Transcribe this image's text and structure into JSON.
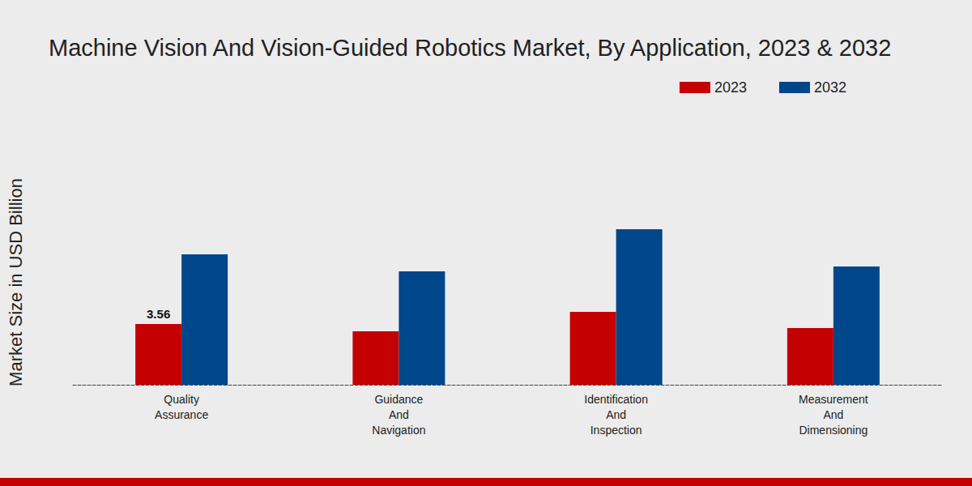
{
  "chart_data": {
    "type": "bar",
    "title": "Machine Vision And Vision-Guided Robotics Market, By Application, 2023 & 2032",
    "y_label": "Market Size in USD Billion",
    "categories": [
      "Quality Assurance",
      "Guidance And Navigation",
      "Identification And Inspection",
      "Measurement And Dimensioning"
    ],
    "series": [
      {
        "name": "2023",
        "color": "#c40000",
        "values": [
          3.56,
          3.13,
          4.27,
          3.32
        ],
        "value_labels": [
          "3.56",
          null,
          null,
          null
        ]
      },
      {
        "name": "2032",
        "color": "#00468b",
        "values": [
          7.64,
          6.64,
          9.11,
          6.93
        ]
      }
    ],
    "ylim": [
      0,
      12
    ],
    "grid": false,
    "legend": "top-right",
    "tick_labels": "x"
  }
}
